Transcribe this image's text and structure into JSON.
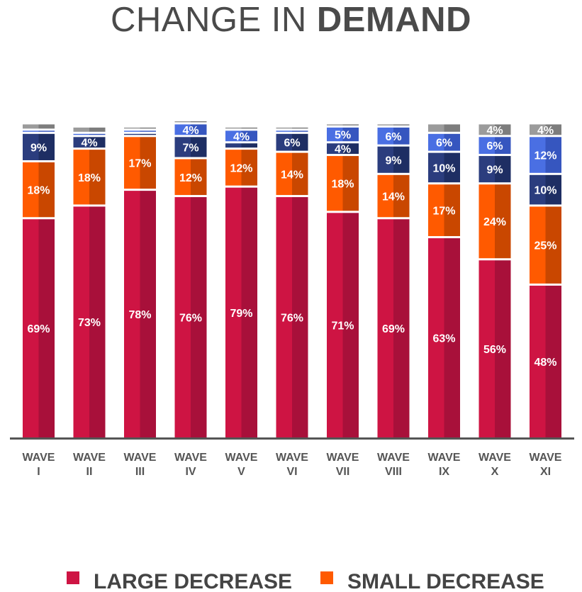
{
  "title_part1": "CHANGE IN ",
  "title_part2": "DEMAND",
  "chart_data": {
    "type": "bar",
    "stacked": true,
    "title": "CHANGE IN DEMAND",
    "categories": [
      [
        "WAVE",
        "I"
      ],
      [
        "WAVE",
        "II"
      ],
      [
        "WAVE",
        "III"
      ],
      [
        "WAVE",
        "IV"
      ],
      [
        "WAVE",
        "V"
      ],
      [
        "WAVE",
        "VI"
      ],
      [
        "WAVE",
        "VII"
      ],
      [
        "WAVE",
        "VIII"
      ],
      [
        "WAVE",
        "IX"
      ],
      [
        "WAVE",
        "X"
      ],
      [
        "WAVE",
        "XI"
      ]
    ],
    "ylim": [
      0,
      100
    ],
    "legend_position": "bottom",
    "series": [
      {
        "name": "LARGE DECREASE",
        "color": "#CE1443",
        "shade": "#A8103A",
        "legend": true,
        "values": [
          69,
          73,
          78,
          76,
          79,
          76,
          71,
          69,
          63,
          56,
          48
        ],
        "labels": [
          "69%",
          "73%",
          "78%",
          "76%",
          "79%",
          "76%",
          "71%",
          "69%",
          "63%",
          "56%",
          "48%"
        ]
      },
      {
        "name": "SMALL DECREASE",
        "color": "#FF5A00",
        "shade": "#C94700",
        "legend": true,
        "values": [
          18,
          18,
          17,
          12,
          12,
          14,
          18,
          14,
          17,
          24,
          25
        ],
        "labels": [
          "18%",
          "18%",
          "17%",
          "12%",
          "12%",
          "14%",
          "18%",
          "14%",
          "17%",
          "24%",
          "25%"
        ]
      },
      {
        "color": "#2B3D7E",
        "shade": "#1E2E63",
        "legend": false,
        "values": [
          9,
          4,
          1,
          7,
          2,
          6,
          4,
          9,
          10,
          9,
          10
        ],
        "labels": [
          "9%",
          "4%",
          "",
          "7%",
          "",
          "6%",
          "4%",
          "9%",
          "10%",
          "9%",
          "10%"
        ]
      },
      {
        "color": "#4A6FE3",
        "shade": "#3656BF",
        "legend": false,
        "values": [
          1,
          1,
          1,
          4,
          4,
          1,
          5,
          6,
          6,
          6,
          12
        ],
        "labels": [
          "",
          "",
          "",
          "4%",
          "4%",
          "",
          "5%",
          "6%",
          "6%",
          "6%",
          "12%"
        ]
      },
      {
        "color": "#9B9B9B",
        "shade": "#7D7D7D",
        "legend": false,
        "values": [
          2,
          2,
          1,
          1,
          1,
          1,
          1,
          1,
          3,
          4,
          4
        ],
        "labels": [
          "",
          "",
          "",
          "",
          "",
          "",
          "",
          "",
          "",
          "4%",
          "4%"
        ]
      }
    ]
  }
}
